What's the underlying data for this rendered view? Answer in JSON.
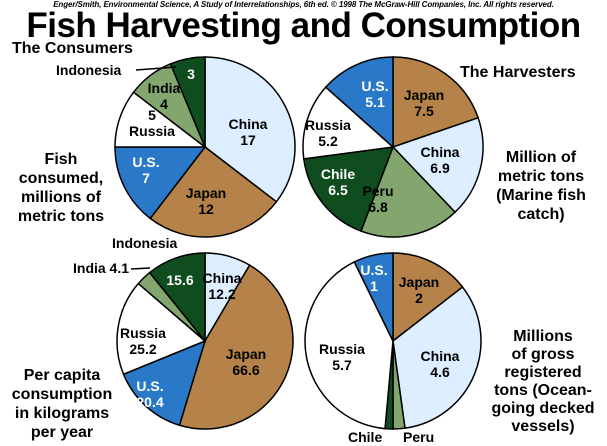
{
  "header": {
    "credit": "Enger/Smith, Environmental Science, A Study of Interrelationships, 6th ed. © 1998 The McGraw-Hill Companies, Inc. All rights reserved.",
    "title": "Fish Harvesting and Consumption"
  },
  "labels": {
    "consumers": "The Consumers",
    "harvesters": "The Harvesters",
    "fish_consumed": [
      "Fish",
      "consumed,",
      "millions of",
      "metric tons"
    ],
    "million_metric": [
      "Million of",
      "metric tons",
      "(Marine fish",
      "catch)"
    ],
    "per_capita": [
      "Per capita",
      "consumption",
      "in kilograms",
      "per year"
    ],
    "gross_tons": [
      "Millions",
      "of gross",
      "registered",
      "tons (Ocean-",
      "going decked",
      "vessels)"
    ]
  },
  "colors": {
    "China": "#dceeff",
    "Japan": "#b5834a",
    "U.S.": "#2a78c8",
    "Russia": "#ffffff",
    "India": "#82a66e",
    "Indonesia": "#0f4d1f",
    "Chile": "#0f4d1f",
    "Peru": "#82a66e"
  },
  "chart_data": [
    {
      "type": "pie",
      "title": "The Consumers",
      "subtitle": "Fish consumed, millions of metric tons",
      "slices": [
        {
          "label": "China",
          "value": 17
        },
        {
          "label": "Japan",
          "value": 12
        },
        {
          "label": "U.S.",
          "value": 7
        },
        {
          "label": "Russia",
          "value": 5
        },
        {
          "label": "India",
          "value": 4
        },
        {
          "label": "Indonesia",
          "value": 3
        }
      ]
    },
    {
      "type": "pie",
      "title": "The Harvesters",
      "subtitle": "Million of metric tons (Marine fish catch)",
      "slices": [
        {
          "label": "Japan",
          "value": 7.5
        },
        {
          "label": "China",
          "value": 6.9
        },
        {
          "label": "Peru",
          "value": 6.8
        },
        {
          "label": "Chile",
          "value": 6.5
        },
        {
          "label": "Russia",
          "value": 5.2
        },
        {
          "label": "U.S.",
          "value": 5.1
        }
      ]
    },
    {
      "type": "pie",
      "subtitle": "Per capita consumption in kilograms per year",
      "slices": [
        {
          "label": "China",
          "value": 12.2
        },
        {
          "label": "Japan",
          "value": 66.6
        },
        {
          "label": "U.S.",
          "value": 20.4
        },
        {
          "label": "Russia",
          "value": 25.2
        },
        {
          "label": "India",
          "value": 4.1
        },
        {
          "label": "Indonesia",
          "value": 15.6
        }
      ]
    },
    {
      "type": "pie",
      "subtitle": "Millions of gross registered tons (Ocean-going decked vessels)",
      "slices": [
        {
          "label": "Japan",
          "value": 2
        },
        {
          "label": "China",
          "value": 4.6
        },
        {
          "label": "Peru",
          "value": 0.3
        },
        {
          "label": "Chile",
          "value": 0.2
        },
        {
          "label": "Russia",
          "value": 5.7
        },
        {
          "label": "U.S.",
          "value": 1
        }
      ]
    }
  ]
}
